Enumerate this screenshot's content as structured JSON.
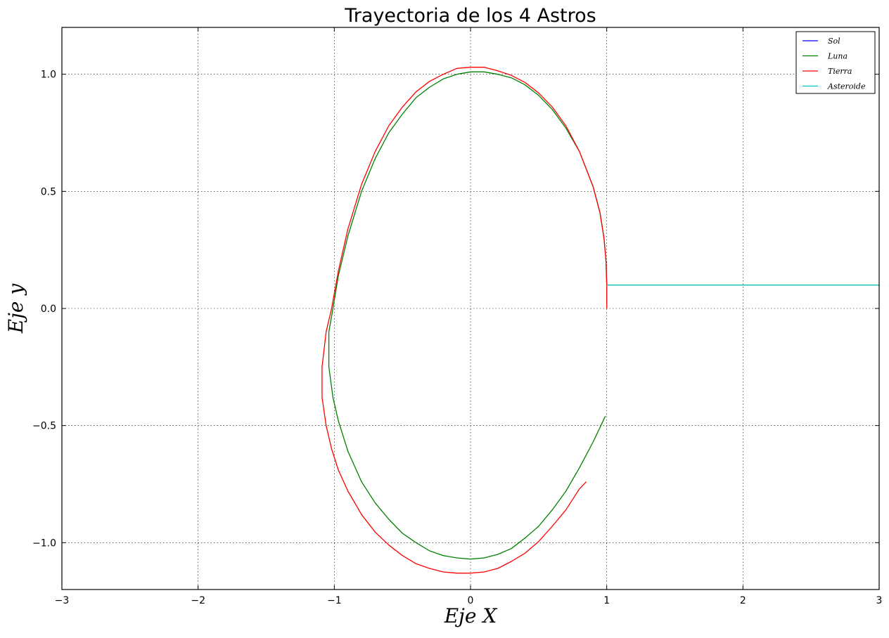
{
  "chart_data": {
    "type": "line",
    "title": "Trayectoria de los 4 Astros",
    "xlabel": "Eje X",
    "ylabel": "Eje y",
    "xlim": [
      -3,
      3
    ],
    "ylim": [
      -1.2,
      1.2
    ],
    "xticks": [
      -3,
      -2,
      -1,
      0,
      1,
      2,
      3
    ],
    "xtick_labels": [
      "−3",
      "−2",
      "−1",
      "0",
      "1",
      "2",
      "3"
    ],
    "yticks": [
      -1.0,
      -0.5,
      0.0,
      0.5,
      1.0
    ],
    "ytick_labels": [
      "−1.0",
      "−0.5",
      "0.0",
      "0.5",
      "1.0"
    ],
    "grid": true,
    "legend_position": "top-right",
    "series": [
      {
        "name": "Sol",
        "color": "#0000ff",
        "x": [
          0.0,
          0.0
        ],
        "y": [
          0.0,
          0.0
        ]
      },
      {
        "name": "Luna",
        "color": "#008000",
        "x": [
          1.0,
          0.995,
          0.98,
          0.95,
          0.9,
          0.8,
          0.7,
          0.6,
          0.5,
          0.4,
          0.3,
          0.2,
          0.1,
          0.0,
          -0.1,
          -0.2,
          -0.3,
          -0.4,
          -0.5,
          -0.6,
          -0.7,
          -0.8,
          -0.9,
          -0.97,
          -1.01,
          -1.04,
          -1.04,
          -1.01,
          -0.97,
          -0.9,
          -0.8,
          -0.7,
          -0.6,
          -0.5,
          -0.4,
          -0.3,
          -0.2,
          -0.1,
          0.0,
          0.1,
          0.2,
          0.3,
          0.4,
          0.5,
          0.6,
          0.7,
          0.8,
          0.9,
          0.99
        ],
        "y": [
          0.1,
          0.2,
          0.3,
          0.41,
          0.52,
          0.67,
          0.77,
          0.85,
          0.91,
          0.955,
          0.985,
          1.0,
          1.01,
          1.01,
          1.0,
          0.98,
          0.945,
          0.9,
          0.83,
          0.75,
          0.64,
          0.5,
          0.31,
          0.14,
          0.0,
          -0.1,
          -0.25,
          -0.38,
          -0.48,
          -0.61,
          -0.74,
          -0.83,
          -0.9,
          -0.96,
          -1.0,
          -1.035,
          -1.055,
          -1.065,
          -1.07,
          -1.065,
          -1.05,
          -1.025,
          -0.98,
          -0.93,
          -0.86,
          -0.78,
          -0.68,
          -0.57,
          -0.46
        ]
      },
      {
        "name": "Tierra",
        "color": "#ff0000",
        "x": [
          1.0,
          1.0,
          0.995,
          0.98,
          0.95,
          0.9,
          0.8,
          0.7,
          0.6,
          0.5,
          0.4,
          0.3,
          0.2,
          0.1,
          0.0,
          -0.1,
          -0.2,
          -0.3,
          -0.4,
          -0.5,
          -0.6,
          -0.7,
          -0.8,
          -0.9,
          -0.97,
          -1.02,
          -1.06,
          -1.09,
          -1.09,
          -1.06,
          -1.02,
          -0.97,
          -0.9,
          -0.8,
          -0.7,
          -0.6,
          -0.5,
          -0.4,
          -0.3,
          -0.2,
          -0.1,
          0.0,
          0.1,
          0.2,
          0.3,
          0.4,
          0.5,
          0.6,
          0.7,
          0.8,
          0.85
        ],
        "y": [
          0.0,
          0.1,
          0.2,
          0.3,
          0.41,
          0.52,
          0.67,
          0.78,
          0.86,
          0.92,
          0.965,
          0.995,
          1.015,
          1.03,
          1.03,
          1.025,
          1.0,
          0.97,
          0.925,
          0.86,
          0.78,
          0.67,
          0.53,
          0.34,
          0.16,
          0.0,
          -0.1,
          -0.25,
          -0.38,
          -0.5,
          -0.6,
          -0.69,
          -0.78,
          -0.88,
          -0.955,
          -1.01,
          -1.055,
          -1.09,
          -1.11,
          -1.125,
          -1.13,
          -1.13,
          -1.125,
          -1.11,
          -1.08,
          -1.045,
          -0.995,
          -0.93,
          -0.86,
          -0.77,
          -0.74
        ]
      },
      {
        "name": "Asteroide",
        "color": "#00bfbf",
        "x": [
          1.0,
          3.0
        ],
        "y": [
          0.1,
          0.1
        ]
      }
    ]
  }
}
